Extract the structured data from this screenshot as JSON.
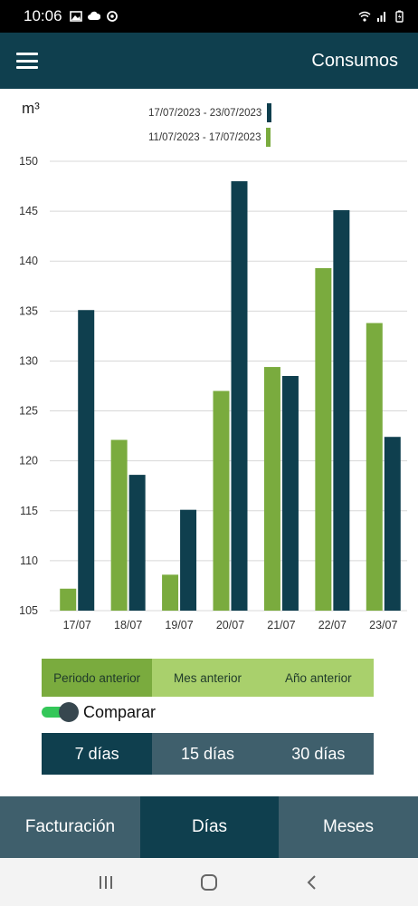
{
  "status_bar": {
    "time": "10:06"
  },
  "app_bar": {
    "title": "Consumos"
  },
  "chart": {
    "unit": "m³"
  },
  "chart_data": {
    "type": "bar",
    "categories": [
      "17/07",
      "18/07",
      "19/07",
      "20/07",
      "21/07",
      "22/07",
      "23/07"
    ],
    "series": [
      {
        "name": "11/07/2023 - 17/07/2023",
        "color": "#7aab3e",
        "values": [
          107.2,
          122.1,
          108.6,
          127.0,
          129.4,
          139.3,
          133.8
        ]
      },
      {
        "name": "17/07/2023 - 23/07/2023",
        "color": "#0f3f4e",
        "values": [
          135.1,
          118.6,
          115.1,
          148.0,
          128.5,
          145.1,
          122.4
        ]
      }
    ],
    "ylim": [
      105,
      150
    ],
    "yticks": [
      105,
      110,
      115,
      120,
      125,
      130,
      135,
      140,
      145,
      150
    ],
    "grid": true,
    "legend_position": "top-right",
    "xlabel": "",
    "ylabel": "m³"
  },
  "range_selector": {
    "options": [
      "Periodo anterior",
      "Mes anterior",
      "Año anterior"
    ],
    "selected": 0
  },
  "compare_toggle": {
    "label": "Comparar",
    "on": true
  },
  "days_selector": {
    "options": [
      "7 días",
      "15 días",
      "30 días"
    ],
    "selected": 0
  },
  "bottom_tabs": {
    "items": [
      "Facturación",
      "Días",
      "Meses"
    ],
    "selected": 1
  }
}
